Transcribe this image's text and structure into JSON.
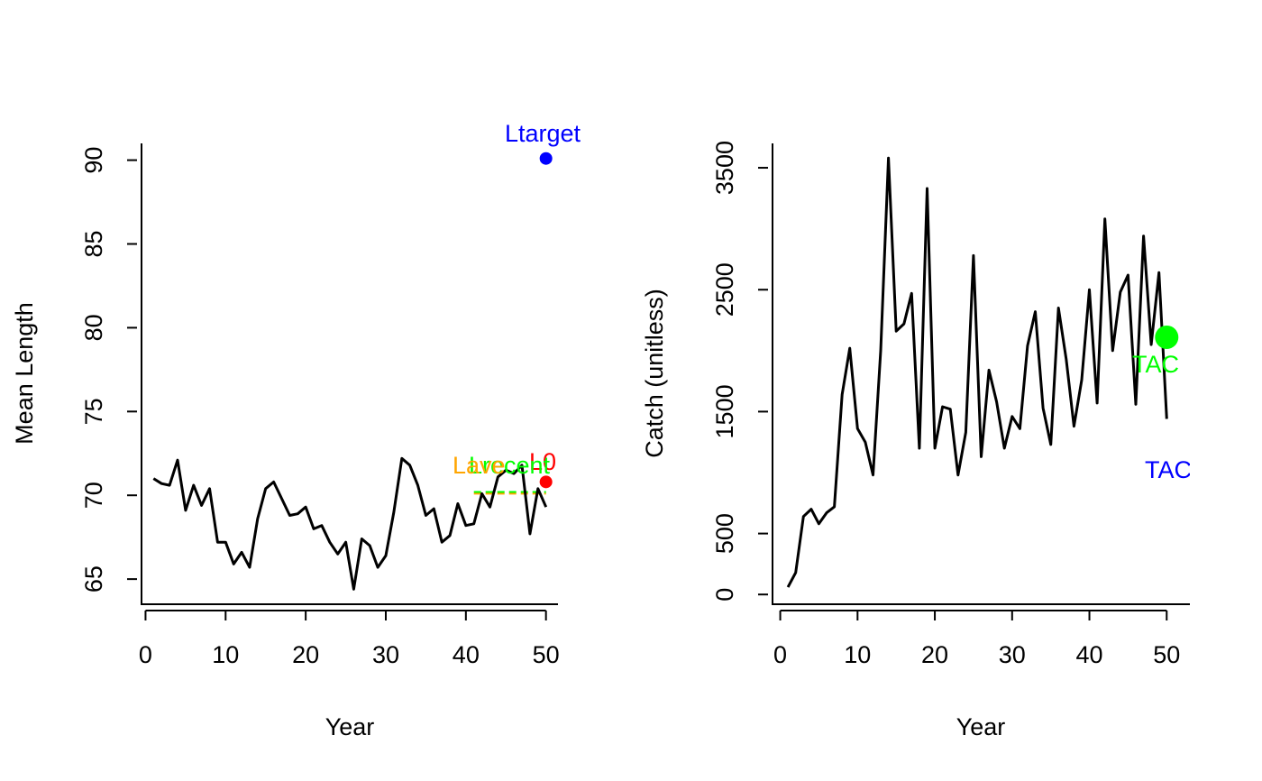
{
  "chart_data": [
    {
      "type": "line",
      "xlabel": "Year",
      "ylabel": "Mean Length",
      "xlim": [
        -0.5,
        51.5
      ],
      "ylim": [
        63.5,
        91
      ],
      "xticks": [
        0,
        10,
        20,
        30,
        40,
        50
      ],
      "yticks": [
        65,
        70,
        75,
        80,
        85,
        90
      ],
      "grid": false,
      "series": [
        {
          "color": "#000000",
          "x": [
            1,
            2,
            3,
            4,
            5,
            6,
            7,
            8,
            9,
            10,
            11,
            12,
            13,
            14,
            15,
            16,
            17,
            18,
            19,
            20,
            21,
            22,
            23,
            24,
            25,
            26,
            27,
            28,
            29,
            30,
            31,
            32,
            33,
            34,
            35,
            36,
            37,
            38,
            39,
            40,
            41,
            42,
            43,
            44,
            45,
            46,
            47,
            48,
            49,
            50
          ],
          "y": [
            71.0,
            70.7,
            70.6,
            72.1,
            69.1,
            70.6,
            69.4,
            70.4,
            67.2,
            67.2,
            65.9,
            66.6,
            65.7,
            68.6,
            70.4,
            70.8,
            69.8,
            68.8,
            68.9,
            69.3,
            68.0,
            68.2,
            67.2,
            66.5,
            67.2,
            64.4,
            67.4,
            67.0,
            65.7,
            66.4,
            69.0,
            72.2,
            71.8,
            70.6,
            68.8,
            69.2,
            67.2,
            67.6,
            69.5,
            68.2,
            68.3,
            70.1,
            69.3,
            71.1,
            71.5,
            71.3,
            71.8,
            67.7,
            70.4,
            69.3
          ]
        }
      ],
      "points": [
        {
          "label": "Ltarget",
          "x": 50,
          "y": 90.1,
          "color": "#0000FF"
        },
        {
          "label": "L0",
          "x": 50,
          "y": 70.8,
          "color": "#FF0000"
        }
      ],
      "reference_lines": [
        {
          "x_from": 41,
          "x_to": 50,
          "y": 70.1,
          "color": "#FFA500"
        },
        {
          "x_from": 41,
          "x_to": 50,
          "y": 70.2,
          "color": "#00FF00"
        }
      ],
      "annotations": [
        {
          "text": "Ltarget",
          "color": "#0000FF"
        },
        {
          "text": "L0",
          "color": "#FF0000"
        },
        {
          "text": "Lrecent",
          "color": "#00FF00"
        },
        {
          "text": "Lave",
          "color": "#FFA500"
        }
      ]
    },
    {
      "type": "line",
      "xlabel": "Year",
      "ylabel": "Catch (unitless)",
      "xlim": [
        -1,
        53
      ],
      "ylim": [
        -80,
        3700
      ],
      "xticks": [
        0,
        10,
        20,
        30,
        40,
        50
      ],
      "yticks": [
        0,
        500,
        1500,
        2500,
        3500
      ],
      "grid": false,
      "series": [
        {
          "color": "#000000",
          "x": [
            1,
            2,
            3,
            4,
            5,
            6,
            7,
            8,
            9,
            10,
            11,
            12,
            13,
            14,
            15,
            16,
            17,
            18,
            19,
            20,
            21,
            22,
            23,
            24,
            25,
            26,
            27,
            28,
            29,
            30,
            31,
            32,
            33,
            34,
            35,
            36,
            37,
            38,
            39,
            40,
            41,
            42,
            43,
            44,
            45,
            46,
            47,
            48,
            49,
            50
          ],
          "y": [
            60,
            180,
            640,
            700,
            580,
            670,
            720,
            1640,
            2020,
            1360,
            1250,
            980,
            2000,
            3580,
            2160,
            2220,
            2470,
            1200,
            3330,
            1200,
            1540,
            1520,
            980,
            1330,
            2780,
            1130,
            1840,
            1580,
            1200,
            1460,
            1360,
            2040,
            2320,
            1530,
            1230,
            2350,
            1930,
            1380,
            1760,
            2500,
            1570,
            3080,
            2000,
            2480,
            2620,
            1560,
            2940,
            2050,
            2640,
            1440
          ]
        }
      ],
      "points": [
        {
          "label": "TAC",
          "x": 50,
          "y": 2110,
          "color": "#00FF00"
        }
      ],
      "annotations": [
        {
          "text": "TAC",
          "color": "#00FF00"
        },
        {
          "text": "TAC",
          "color": "#0000FF"
        }
      ]
    }
  ]
}
